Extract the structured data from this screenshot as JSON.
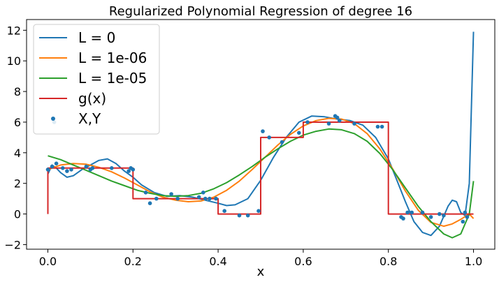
{
  "chart_data": {
    "type": "line",
    "title": "Regularized Polynomial Regression of degree 16",
    "xlabel": "x",
    "ylabel": "",
    "xlim": [
      -0.05,
      1.05
    ],
    "ylim": [
      -2.3,
      12.7
    ],
    "x_ticks": [
      0.0,
      0.2,
      0.4,
      0.6,
      0.8,
      1.0
    ],
    "x_tick_labels": [
      "0.0",
      "0.2",
      "0.4",
      "0.6",
      "0.8",
      "1.0"
    ],
    "y_ticks": [
      -2,
      0,
      2,
      4,
      6,
      8,
      10,
      12
    ],
    "y_tick_labels": [
      "−2",
      "0",
      "2",
      "4",
      "6",
      "8",
      "10",
      "12"
    ],
    "grid": false,
    "legend_position": "top-left",
    "series": [
      {
        "name": "L = 0",
        "color": "#1f77b4",
        "x": [
          0.0,
          0.01,
          0.02,
          0.03,
          0.045,
          0.06,
          0.08,
          0.1,
          0.12,
          0.14,
          0.16,
          0.18,
          0.2,
          0.22,
          0.25,
          0.28,
          0.31,
          0.34,
          0.37,
          0.4,
          0.42,
          0.44,
          0.47,
          0.5,
          0.53,
          0.56,
          0.59,
          0.62,
          0.65,
          0.68,
          0.71,
          0.74,
          0.77,
          0.8,
          0.82,
          0.84,
          0.86,
          0.88,
          0.9,
          0.92,
          0.94,
          0.95,
          0.96,
          0.97,
          0.98,
          0.99,
          1.0
        ],
        "y": [
          2.6,
          3.2,
          3.0,
          2.7,
          2.4,
          2.5,
          2.9,
          3.2,
          3.5,
          3.6,
          3.3,
          2.8,
          2.4,
          1.9,
          1.4,
          1.15,
          1.2,
          1.1,
          0.9,
          0.7,
          0.55,
          0.6,
          1.0,
          2.2,
          3.7,
          5.0,
          6.0,
          6.4,
          6.35,
          6.2,
          6.1,
          5.8,
          5.0,
          3.6,
          2.2,
          0.8,
          -0.5,
          -1.2,
          -1.4,
          -0.8,
          0.5,
          0.9,
          0.8,
          0.1,
          -0.1,
          2.0,
          11.9
        ]
      },
      {
        "name": "L = 1e-06",
        "color": "#ff7f0e",
        "x": [
          0.0,
          0.03,
          0.06,
          0.09,
          0.12,
          0.15,
          0.18,
          0.21,
          0.24,
          0.27,
          0.3,
          0.33,
          0.36,
          0.39,
          0.42,
          0.45,
          0.48,
          0.51,
          0.54,
          0.57,
          0.6,
          0.63,
          0.66,
          0.69,
          0.72,
          0.75,
          0.78,
          0.81,
          0.84,
          0.87,
          0.9,
          0.93,
          0.95,
          0.97,
          0.99,
          1.0
        ],
        "y": [
          2.9,
          3.2,
          3.3,
          3.25,
          3.05,
          2.75,
          2.35,
          1.9,
          1.45,
          1.1,
          0.9,
          0.8,
          0.85,
          1.1,
          1.55,
          2.15,
          2.9,
          3.7,
          4.5,
          5.2,
          5.75,
          6.1,
          6.25,
          6.2,
          5.9,
          5.25,
          4.25,
          2.95,
          1.5,
          0.25,
          -0.55,
          -0.8,
          -0.65,
          -0.35,
          0.0,
          -0.3
        ]
      },
      {
        "name": "L = 1e-05",
        "color": "#2ca02c",
        "x": [
          0.0,
          0.03,
          0.06,
          0.09,
          0.12,
          0.15,
          0.18,
          0.21,
          0.24,
          0.27,
          0.3,
          0.33,
          0.36,
          0.39,
          0.42,
          0.45,
          0.48,
          0.51,
          0.54,
          0.57,
          0.6,
          0.63,
          0.66,
          0.69,
          0.72,
          0.75,
          0.78,
          0.81,
          0.84,
          0.87,
          0.9,
          0.93,
          0.95,
          0.97,
          0.99,
          1.0
        ],
        "y": [
          3.8,
          3.55,
          3.2,
          2.85,
          2.5,
          2.15,
          1.85,
          1.55,
          1.35,
          1.2,
          1.15,
          1.2,
          1.35,
          1.65,
          2.05,
          2.55,
          3.1,
          3.7,
          4.25,
          4.75,
          5.15,
          5.4,
          5.55,
          5.5,
          5.25,
          4.75,
          3.95,
          2.9,
          1.7,
          0.5,
          -0.5,
          -1.3,
          -1.55,
          -1.3,
          0.0,
          2.15
        ]
      },
      {
        "name": "g(x)",
        "color": "#d62728",
        "x": [
          0.0,
          0.0,
          0.2,
          0.2,
          0.4,
          0.4,
          0.5,
          0.5,
          0.6,
          0.6,
          0.8,
          0.8,
          1.0
        ],
        "y": [
          0,
          3,
          3,
          1,
          1,
          0,
          0,
          5,
          5,
          6,
          6,
          0,
          0
        ]
      }
    ],
    "scatter": {
      "name": "X,Y",
      "color": "#1f77b4",
      "x": [
        0.0,
        0.01,
        0.015,
        0.02,
        0.035,
        0.045,
        0.055,
        0.09,
        0.1,
        0.105,
        0.15,
        0.19,
        0.195,
        0.2,
        0.23,
        0.24,
        0.255,
        0.29,
        0.305,
        0.355,
        0.365,
        0.37,
        0.38,
        0.395,
        0.415,
        0.45,
        0.47,
        0.495,
        0.505,
        0.52,
        0.55,
        0.59,
        0.61,
        0.66,
        0.675,
        0.68,
        0.685,
        0.72,
        0.775,
        0.785,
        0.83,
        0.835,
        0.845,
        0.855,
        0.88,
        0.9,
        0.92,
        0.93,
        0.975,
        0.98,
        0.985
      ],
      "y": [
        2.9,
        3.1,
        6.0,
        3.3,
        3.0,
        2.8,
        2.9,
        3.1,
        2.9,
        3.0,
        3.0,
        2.8,
        3.0,
        2.9,
        1.4,
        0.7,
        1.0,
        1.3,
        1.0,
        1.1,
        1.4,
        1.0,
        1.0,
        1.0,
        0.2,
        -0.1,
        -0.1,
        0.2,
        5.4,
        5.0,
        4.7,
        5.3,
        6.0,
        5.9,
        6.4,
        6.3,
        6.1,
        5.9,
        5.7,
        5.7,
        -0.2,
        -0.3,
        0.1,
        0.1,
        0.1,
        -0.2,
        0.0,
        -0.1,
        -0.5,
        0.1,
        -0.2
      ]
    }
  }
}
